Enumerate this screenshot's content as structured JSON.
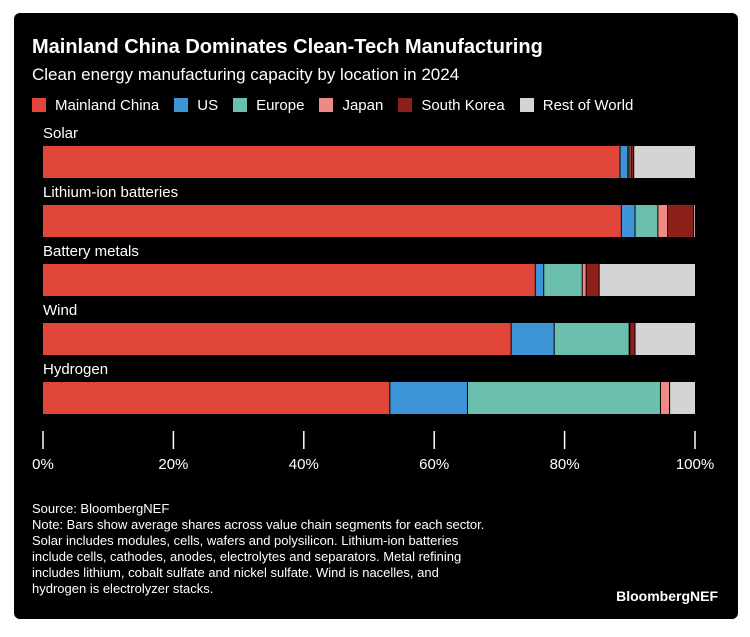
{
  "header": {
    "title": "Mainland China Dominates Clean-Tech Manufacturing",
    "subtitle": "Clean energy manufacturing capacity by location in 2024"
  },
  "colors": {
    "Mainland China": "#e2453a",
    "US": "#3d95d8",
    "Europe": "#6bc0ad",
    "Japan": "#ee8a85",
    "South Korea": "#8d2119",
    "Rest of World": "#d4d4d4"
  },
  "chart_data": {
    "type": "bar",
    "orientation": "horizontal",
    "stacked": true,
    "title": "Mainland China Dominates Clean-Tech Manufacturing",
    "subtitle": "Clean energy manufacturing capacity by location in 2024",
    "categories": [
      "Solar",
      "Lithium-ion batteries",
      "Battery metals",
      "Wind",
      "Hydrogen"
    ],
    "series": [
      {
        "name": "Mainland China",
        "values": [
          88.5,
          88.7,
          75.5,
          71.8,
          53.2
        ]
      },
      {
        "name": "US",
        "values": [
          1.2,
          2.1,
          1.3,
          6.6,
          11.9
        ]
      },
      {
        "name": "Europe",
        "values": [
          0.2,
          3.5,
          5.9,
          11.5,
          29.6
        ]
      },
      {
        "name": "Japan",
        "values": [
          0.3,
          1.5,
          0.6,
          0.1,
          1.4
        ]
      },
      {
        "name": "South Korea",
        "values": [
          0.4,
          4.0,
          2.0,
          0.8,
          0.0
        ]
      },
      {
        "name": "Rest of World",
        "values": [
          9.4,
          0.2,
          14.7,
          9.2,
          3.9
        ]
      }
    ],
    "xlim": [
      0,
      100
    ],
    "xticks": [
      0,
      20,
      40,
      60,
      80,
      100
    ],
    "xtick_labels": [
      "0%",
      "20%",
      "40%",
      "60%",
      "80%",
      "100%"
    ],
    "legend_position": "top",
    "grid": false
  },
  "footer": {
    "source": "Source: BloombergNEF",
    "note_lines": [
      "Note: Bars show average shares across value chain segments for each sector.",
      "Solar includes modules, cells, wafers and polysilicon. Lithium-ion batteries",
      "include cells, cathodes, anodes, electrolytes and separators. Metal refining",
      "includes lithium, cobalt sulfate and nickel sulfate. Wind is nacelles, and",
      "hydrogen is electrolyzer stacks."
    ],
    "brand": "BloombergNEF"
  }
}
